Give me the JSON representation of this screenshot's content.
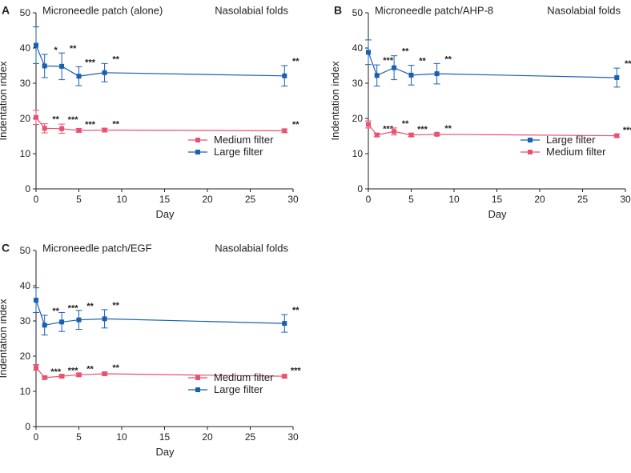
{
  "colors": {
    "medium": "#e8516f",
    "large": "#1a5fb4"
  },
  "chart_data": [
    {
      "type": "line",
      "letter": "A",
      "title": "Microneedle patch (alone)",
      "subtitle": "Nasolabial folds",
      "xlabel": "Day",
      "ylabel": "Indentation index",
      "xlim": [
        0,
        30
      ],
      "ylim": [
        0,
        50
      ],
      "xticks": [
        "0",
        "5",
        "10",
        "15",
        "20",
        "25",
        "30"
      ],
      "yticks": [
        "0",
        "10",
        "20",
        "30",
        "40",
        "50"
      ],
      "legend_position": "bottom-right",
      "legend_order": [
        "Medium filter",
        "Large filter"
      ],
      "series": [
        {
          "name": "Medium filter",
          "color_key": "medium",
          "x": [
            0,
            1,
            3,
            5,
            8,
            29
          ],
          "y": [
            20.3,
            17.2,
            17.1,
            16.6,
            16.7,
            16.5
          ],
          "err": [
            2.0,
            1.3,
            1.3,
            0.5,
            0.5,
            0.5
          ],
          "sig": [
            "",
            "**",
            "***",
            "***",
            "**",
            "**"
          ]
        },
        {
          "name": "Large filter",
          "color_key": "large",
          "x": [
            0,
            1,
            3,
            5,
            8,
            29
          ],
          "y": [
            40.8,
            34.9,
            34.8,
            32.0,
            33.0,
            32.1
          ],
          "err": [
            5.2,
            3.3,
            3.8,
            2.7,
            2.6,
            2.9
          ],
          "sig": [
            "",
            "*",
            "**",
            "***",
            "**",
            "**"
          ]
        }
      ]
    },
    {
      "type": "line",
      "letter": "B",
      "title": "Microneedle patch/AHP-8",
      "subtitle": "Nasolabial folds",
      "xlabel": "Day",
      "ylabel": "Indentation index",
      "xlim": [
        0,
        30
      ],
      "ylim": [
        0,
        50
      ],
      "xticks": [
        "0",
        "5",
        "10",
        "15",
        "20",
        "25",
        "30"
      ],
      "yticks": [
        "0",
        "10",
        "20",
        "30",
        "40",
        "50"
      ],
      "legend_position": "bottom-right",
      "legend_order": [
        "Large filter",
        "Medium filter"
      ],
      "series": [
        {
          "name": "Medium filter",
          "color_key": "medium",
          "x": [
            0,
            1,
            3,
            5,
            8,
            29
          ],
          "y": [
            18.3,
            15.3,
            16.3,
            15.3,
            15.5,
            15.1
          ],
          "err": [
            1.0,
            0.5,
            1.0,
            0.4,
            0.4,
            0.4
          ],
          "sig": [
            "",
            "***",
            "**",
            "***",
            "**",
            "***"
          ]
        },
        {
          "name": "Large filter",
          "color_key": "large",
          "x": [
            0,
            1,
            3,
            5,
            8,
            29
          ],
          "y": [
            38.8,
            32.2,
            34.4,
            32.3,
            32.7,
            31.6
          ],
          "err": [
            3.5,
            3.0,
            3.4,
            2.8,
            2.9,
            2.7
          ],
          "sig": [
            "",
            "***",
            "**",
            "**",
            "**",
            "**"
          ]
        }
      ]
    },
    {
      "type": "line",
      "letter": "C",
      "title": "Microneedle patch/EGF",
      "subtitle": "Nasolabial folds",
      "xlabel": "Day",
      "ylabel": "Indentation index",
      "xlim": [
        0,
        30
      ],
      "ylim": [
        0,
        50
      ],
      "xticks": [
        "0",
        "5",
        "10",
        "15",
        "20",
        "25",
        "30"
      ],
      "yticks": [
        "0",
        "10",
        "20",
        "30",
        "40",
        "50"
      ],
      "legend_position": "bottom-right",
      "legend_order": [
        "Medium filter",
        "Large filter"
      ],
      "series": [
        {
          "name": "Medium filter",
          "color_key": "medium",
          "x": [
            0,
            1,
            3,
            5,
            8,
            29
          ],
          "y": [
            16.8,
            13.9,
            14.3,
            14.7,
            15.0,
            14.3
          ],
          "err": [
            0.8,
            0.4,
            0.4,
            0.4,
            0.4,
            0.4
          ],
          "sig": [
            "",
            "***",
            "***",
            "**",
            "**",
            "***"
          ]
        },
        {
          "name": "Large filter",
          "color_key": "large",
          "x": [
            0,
            1,
            3,
            5,
            8,
            29
          ],
          "y": [
            35.9,
            28.8,
            29.7,
            30.3,
            30.6,
            29.3
          ],
          "err": [
            3.5,
            2.8,
            2.7,
            2.7,
            2.6,
            2.5
          ],
          "sig": [
            "",
            "**",
            "***",
            "**",
            "**",
            "**"
          ]
        }
      ]
    }
  ]
}
